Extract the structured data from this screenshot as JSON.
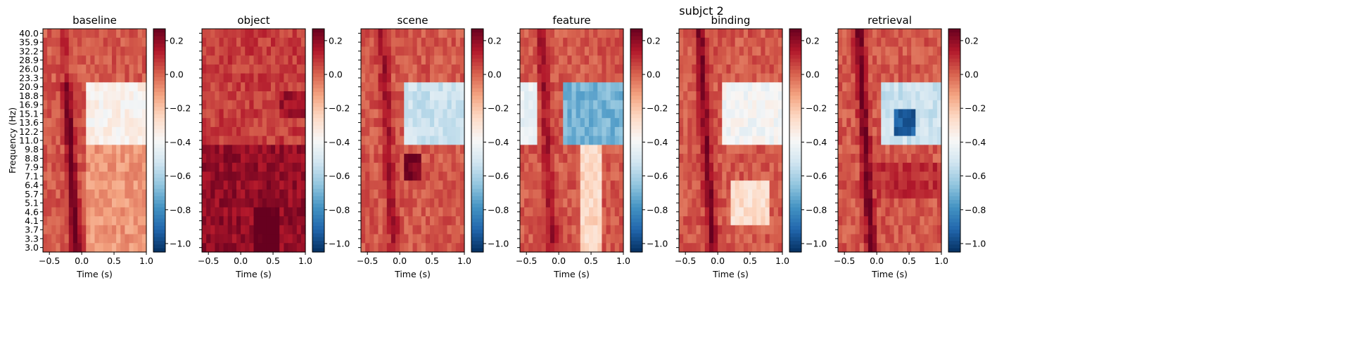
{
  "figure_title": "subjct 2",
  "chart_data": {
    "type": "heatmap",
    "suptitle": "subjct 2",
    "colormap": "RdBu_r",
    "colorbar": {
      "ticks": [
        0.2,
        0.0,
        -0.2,
        -0.4,
        -0.6,
        -0.8,
        -1.0
      ],
      "tick_labels": [
        "0.2",
        "0.0",
        "−0.2",
        "−0.4",
        "−0.6",
        "−0.8",
        "−1.0"
      ],
      "range": [
        -1.05,
        0.27
      ]
    },
    "x": {
      "label": "Time (s)",
      "range": [
        -0.6,
        1.0
      ],
      "ticks": [
        -0.5,
        0.0,
        0.5,
        1.0
      ],
      "tick_labels": [
        "−0.5",
        "0.0",
        "0.5",
        "1.0"
      ]
    },
    "y": {
      "label": "Frequency (Hz)",
      "tick_labels": [
        "40.0",
        "35.9",
        "32.2",
        "28.9",
        "26.0",
        "23.3",
        "20.9",
        "18.8",
        "16.9",
        "15.1",
        "13.6",
        "12.2",
        "11.0",
        "9.8",
        "8.8",
        "7.9",
        "7.1",
        "6.4",
        "5.7",
        "5.1",
        "4.6",
        "4.1",
        "3.7",
        "3.3",
        "3.0"
      ]
    },
    "panels": [
      {
        "title": "baseline",
        "show_ylabel": true
      },
      {
        "title": "object",
        "show_ylabel": false
      },
      {
        "title": "scene",
        "show_ylabel": false
      },
      {
        "title": "feature",
        "show_ylabel": false
      },
      {
        "title": "binding",
        "show_ylabel": false
      },
      {
        "title": "retrieval",
        "show_ylabel": false
      }
    ],
    "colors": {
      "deep_red": "#67001f",
      "red": "#b2182b",
      "salmon": "#f4a582",
      "white": "#f7f7f7",
      "light_blue": "#92c5de",
      "blue": "#2166ac",
      "deep_blue": "#053061"
    }
  }
}
